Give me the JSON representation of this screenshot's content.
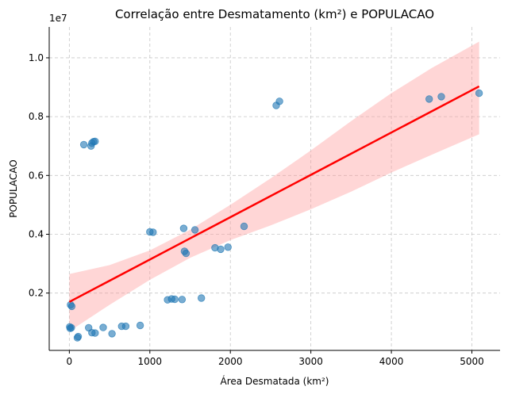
{
  "chart_data": {
    "type": "scatter",
    "title": "Correlação entre Desmatamento (km²) e POPULACAO",
    "xlabel": "Área Desmatada (km²)",
    "ylabel": "POPULACAO",
    "y_offset_label": "1e7",
    "xlim": [
      -250,
      5350
    ],
    "ylim": [
      50000,
      11050000
    ],
    "x_ticks": [
      0,
      1000,
      2000,
      3000,
      4000,
      5000
    ],
    "x_tick_labels": [
      "0",
      "1000",
      "2000",
      "3000",
      "4000",
      "5000"
    ],
    "y_ticks": [
      2000000,
      4000000,
      6000000,
      8000000,
      10000000
    ],
    "y_tick_labels": [
      "0.2",
      "0.4",
      "0.6",
      "0.8",
      "1.0"
    ],
    "grid": true,
    "colors": {
      "points": "#1f77b4",
      "regression": "#ff0000",
      "ci_band": "#ff9999"
    },
    "points": [
      {
        "x": 5,
        "y": 850000
      },
      {
        "x": 10,
        "y": 800000
      },
      {
        "x": 25,
        "y": 820000
      },
      {
        "x": 30,
        "y": 1550000
      },
      {
        "x": 15,
        "y": 1600000
      },
      {
        "x": 100,
        "y": 480000
      },
      {
        "x": 110,
        "y": 520000
      },
      {
        "x": 180,
        "y": 7050000
      },
      {
        "x": 240,
        "y": 820000
      },
      {
        "x": 270,
        "y": 7000000
      },
      {
        "x": 280,
        "y": 7100000
      },
      {
        "x": 300,
        "y": 7150000
      },
      {
        "x": 320,
        "y": 7160000
      },
      {
        "x": 280,
        "y": 650000
      },
      {
        "x": 320,
        "y": 640000
      },
      {
        "x": 420,
        "y": 830000
      },
      {
        "x": 530,
        "y": 620000
      },
      {
        "x": 650,
        "y": 870000
      },
      {
        "x": 700,
        "y": 870000
      },
      {
        "x": 880,
        "y": 900000
      },
      {
        "x": 1000,
        "y": 4080000
      },
      {
        "x": 1040,
        "y": 4070000
      },
      {
        "x": 1220,
        "y": 1770000
      },
      {
        "x": 1270,
        "y": 1800000
      },
      {
        "x": 1310,
        "y": 1790000
      },
      {
        "x": 1400,
        "y": 1780000
      },
      {
        "x": 1420,
        "y": 4200000
      },
      {
        "x": 1430,
        "y": 3420000
      },
      {
        "x": 1450,
        "y": 3350000
      },
      {
        "x": 1560,
        "y": 4150000
      },
      {
        "x": 1640,
        "y": 1830000
      },
      {
        "x": 1810,
        "y": 3540000
      },
      {
        "x": 1880,
        "y": 3490000
      },
      {
        "x": 1970,
        "y": 3560000
      },
      {
        "x": 2170,
        "y": 4270000
      },
      {
        "x": 2570,
        "y": 8380000
      },
      {
        "x": 2610,
        "y": 8520000
      },
      {
        "x": 4470,
        "y": 8600000
      },
      {
        "x": 4620,
        "y": 8680000
      },
      {
        "x": 5090,
        "y": 8800000
      }
    ],
    "regression": {
      "x0": 0,
      "y0": 1700000,
      "x1": 5090,
      "y1": 9030000
    },
    "ci_band": {
      "x": [
        0,
        500,
        1000,
        1500,
        2000,
        2500,
        3000,
        3500,
        4000,
        4500,
        5090
      ],
      "lower": [
        700000,
        1600000,
        2450000,
        3200000,
        3800000,
        4300000,
        4850000,
        5450000,
        6100000,
        6700000,
        7400000
      ],
      "upper": [
        2650000,
        2950000,
        3450000,
        4150000,
        5000000,
        5900000,
        6850000,
        7850000,
        8800000,
        9650000,
        10550000
      ]
    }
  }
}
